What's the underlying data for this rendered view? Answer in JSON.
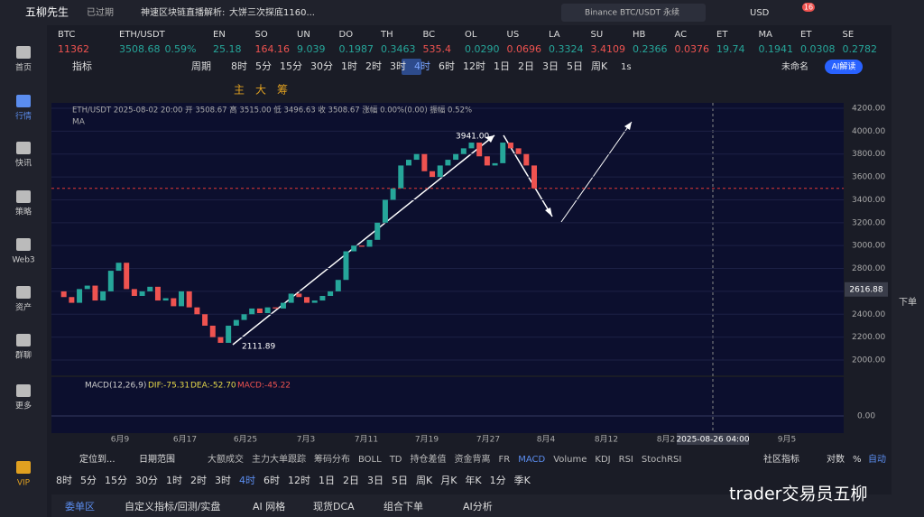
{
  "header": {
    "brand": "五柳先生",
    "status": "已过期",
    "news": "神速区块链直播解析:",
    "news_text": "大饼三次探底1160...",
    "search": "Binance BTC/USDT 永续",
    "currency": "USD",
    "badge": "16"
  },
  "tickers": [
    {
      "name": "BTC",
      "price": "11362",
      "color": "#ef5350"
    },
    {
      "name": "ETH/USDT",
      "price": "3508.68",
      "change": "0.59%",
      "color": "#26a69a"
    },
    {
      "name": "EN",
      "price": "25.18",
      "color": "#26a69a"
    },
    {
      "name": "SO",
      "price": "164.16",
      "color": "#ef5350"
    },
    {
      "name": "UN",
      "price": "9.039",
      "color": "#26a69a"
    },
    {
      "name": "DO",
      "price": "0.1987",
      "color": "#26a69a"
    },
    {
      "name": "TH",
      "price": "0.3463",
      "color": "#26a69a"
    },
    {
      "name": "BC",
      "price": "535.4",
      "color": "#ef5350"
    },
    {
      "name": "OL",
      "price": "0.0290",
      "color": "#26a69a"
    },
    {
      "name": "US",
      "price": "0.0696",
      "color": "#ef5350"
    },
    {
      "name": "LA",
      "price": "0.3324",
      "color": "#26a69a"
    },
    {
      "name": "SU",
      "price": "3.4109",
      "color": "#ef5350"
    },
    {
      "name": "HB",
      "price": "0.2366",
      "color": "#26a69a"
    },
    {
      "name": "AC",
      "price": "0.0376",
      "color": "#ef5350"
    },
    {
      "name": "ET",
      "price": "19.74",
      "color": "#26a69a"
    },
    {
      "name": "MA",
      "price": "0.1941",
      "color": "#26a69a"
    },
    {
      "name": "ET",
      "price": "0.0308",
      "color": "#26a69a"
    },
    {
      "name": "SE",
      "price": "0.2782",
      "color": "#26a69a"
    }
  ],
  "sidebar": [
    "首页",
    "行情",
    "快讯",
    "策略",
    "Web3",
    "资产",
    "群聊",
    "更多",
    "VIP"
  ],
  "right_sidebar": [
    "下单"
  ],
  "toolbar": {
    "indicator": "指标",
    "period": "周期",
    "intervals": [
      "8时",
      "5分",
      "15分",
      "30分",
      "1时",
      "2时",
      "3时",
      "4时",
      "6时",
      "12时",
      "1日",
      "2日",
      "3日",
      "5日",
      "周K"
    ],
    "active": "4时",
    "seconds": "1s",
    "layout": "未命名",
    "ai": "AI解读"
  },
  "draw_tools": [
    "主",
    "大",
    "筹"
  ],
  "chart": {
    "info": "ETH/USDT  2025-08-02 20:00  开 3508.67  高 3515.00  低 3496.63  收 3508.67  涨幅 0.00%(0.00)  振幅 0.52%",
    "ma": "MA",
    "price_ticks": [
      {
        "value": 4200,
        "label": "4200.00"
      },
      {
        "value": 4000,
        "label": "4000.00"
      },
      {
        "value": 3800,
        "label": "3800.00"
      },
      {
        "value": 3600,
        "label": "3600.00"
      },
      {
        "value": 3400,
        "label": "3400.00"
      },
      {
        "value": 3200,
        "label": "3200.00"
      },
      {
        "value": 3000,
        "label": "3000.00"
      },
      {
        "value": 2800,
        "label": "2800.00"
      },
      {
        "value": 2600,
        "label": "2600.00"
      },
      {
        "value": 2400,
        "label": "2400.00"
      },
      {
        "value": 2200,
        "label": "2200.00"
      },
      {
        "value": 2000,
        "label": "2000.00"
      }
    ],
    "closes": [
      2600,
      2550,
      2500,
      2620,
      2650,
      2520,
      2600,
      2780,
      2850,
      2620,
      2560,
      2600,
      2640,
      2520,
      2540,
      2470,
      2600,
      2460,
      2400,
      2300,
      2200,
      2150,
      2300,
      2350,
      2400,
      2450,
      2410,
      2460,
      2450,
      2500,
      2580,
      2550,
      2500,
      2520,
      2560,
      2600,
      2700,
      2950,
      3000,
      2990,
      3050,
      3200,
      3400,
      3500,
      3700,
      3750,
      3800,
      3650,
      3600,
      3700,
      3750,
      3800,
      3850,
      3900,
      3780,
      3700,
      3720,
      3900,
      3850,
      3800,
      3700,
      3500
    ],
    "alert_line": 3500,
    "current_price": {
      "value": 2616.88,
      "label": "2616.88"
    },
    "high_label": "3941.00",
    "low_label": "2111.89",
    "dates": [
      "6月9",
      "6月17",
      "6月25",
      "7月3",
      "7月11",
      "7月19",
      "7月27",
      "8月4",
      "8月12",
      "8月2",
      "9月5"
    ],
    "crosshair_date": "2025-08-26 04:00",
    "macd": {
      "title": "MACD(12,26,9)",
      "dif": "DIF:-75.31",
      "dea": "DEA:-52.70",
      "macd": "MACD:-45.22",
      "zero": "0.00"
    }
  },
  "bottom_bar": {
    "locate": "定位到...",
    "range": "日期范围",
    "indicators": [
      "大额成交",
      "主力大单跟踪",
      "筹码分布",
      "BOLL",
      "TD",
      "持仓差值",
      "资金背离",
      "FR",
      "MACD",
      "Volume",
      "KDJ",
      "RSI",
      "StochRSI"
    ],
    "community": "社区指标",
    "log": "对数",
    "pct": "%",
    "auto": "自动"
  },
  "intervals2": [
    "8时",
    "5分",
    "15分",
    "30分",
    "1时",
    "2时",
    "3时",
    "4时",
    "6时",
    "12时",
    "1日",
    "2日",
    "3日",
    "5日",
    "周K",
    "月K",
    "年K",
    "1分",
    "季K"
  ],
  "tabs": [
    "委单区",
    "自定义指标/回测/实盘",
    "AI 网格",
    "现货DCA",
    "组合下单",
    "AI分析"
  ],
  "watermark": "trader交易员五柳"
}
